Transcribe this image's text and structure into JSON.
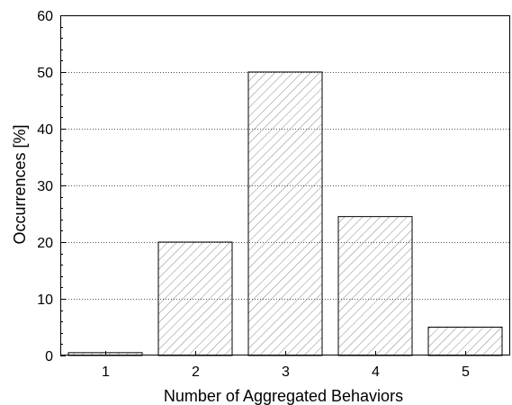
{
  "chart_data": {
    "type": "bar",
    "title": "",
    "xlabel": "Number of Aggregated Behaviors",
    "ylabel": "Occurrences [%]",
    "categories": [
      "1",
      "2",
      "3",
      "4",
      "5"
    ],
    "values": [
      0.5,
      20,
      50,
      24.5,
      5
    ],
    "ylim": [
      0,
      60
    ],
    "yticks": [
      0,
      10,
      20,
      30,
      40,
      50,
      60
    ],
    "grid": "horizontal-dotted",
    "bar_fill": "diagonal-hatch",
    "colors": {
      "bar_stroke": "#000000",
      "hatch": "#888888",
      "grid": "#555555",
      "axis": "#000000"
    }
  }
}
